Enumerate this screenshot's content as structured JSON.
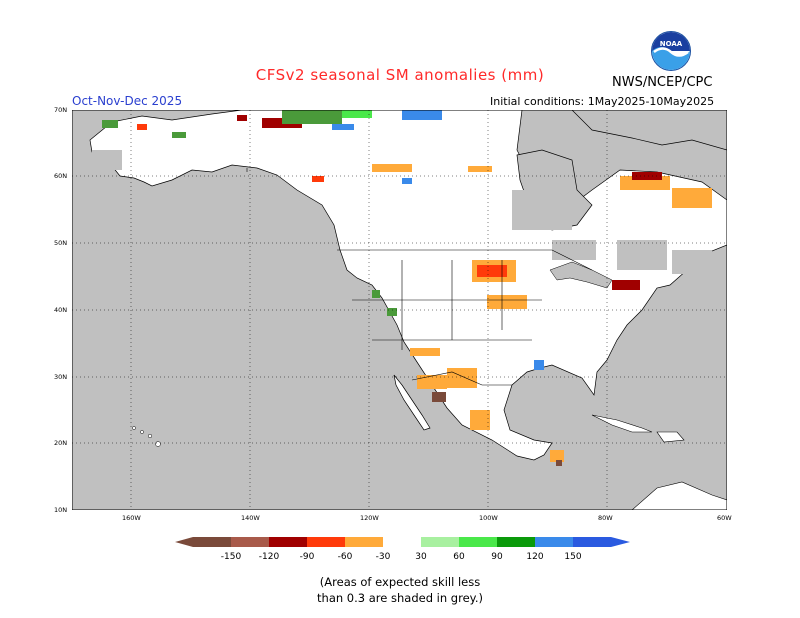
{
  "header": {
    "title": "CFSv2 seasonal SM anomalies (mm)",
    "source": "NWS/NCEP/CPC",
    "season": "Oct-Nov-Dec 2025",
    "initial_conditions": "Initial conditions: 1May2025-10May2025",
    "logo_text": "NOAA"
  },
  "map": {
    "lat_labels": [
      "70N",
      "60N",
      "50N",
      "40N",
      "30N",
      "20N",
      "10N"
    ],
    "lon_labels": [
      "160W",
      "140W",
      "120W",
      "100W",
      "80W",
      "60W"
    ],
    "colors": {
      "ocean": "#c0c0c0",
      "low_skill": "#c0c0c0",
      "no_anomaly": "#ffffff",
      "dry_strong": "#7a4a3a",
      "dry": "#ffaa3a",
      "wet": "#4a9a3a",
      "wet_strong": "#3a8aea"
    }
  },
  "legend": {
    "tick_labels": [
      "-150",
      "-120",
      "-90",
      "-60",
      "-30",
      "30",
      "60",
      "90",
      "120",
      "150"
    ],
    "colors": [
      "#7a4a3a",
      "#a85a4a",
      "#a00000",
      "#ff3a0a",
      "#ffaa3a",
      "#ffffff",
      "#a8f0a0",
      "#4ae84a",
      "#0a9a0a",
      "#3a8aea",
      "#2a5ae0"
    ]
  },
  "note": {
    "line1": "(Areas of expected skill less",
    "line2": "than 0.3 are shaded in grey.)"
  }
}
